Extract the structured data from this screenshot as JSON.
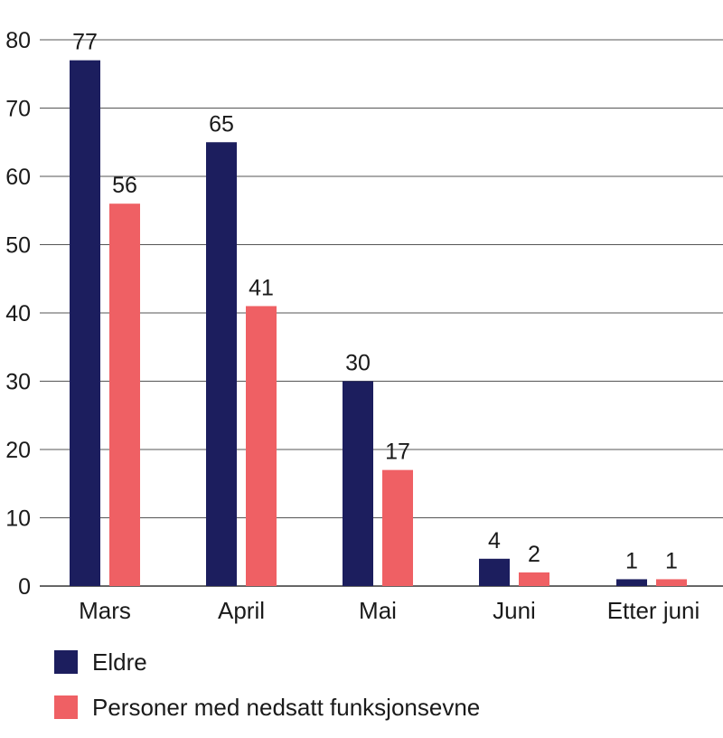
{
  "chart_data": {
    "type": "bar",
    "categories": [
      "Mars",
      "April",
      "Mai",
      "Juni",
      "Etter juni"
    ],
    "series": [
      {
        "name": "Eldre",
        "values": [
          77,
          65,
          30,
          4,
          1
        ],
        "color": "#1c1e5e"
      },
      {
        "name": "Personer med nedsatt funksjonsevne",
        "values": [
          56,
          41,
          17,
          2,
          1
        ],
        "color": "#ef6064"
      }
    ],
    "yticks": [
      "0",
      "10",
      "20",
      "30",
      "40",
      "50",
      "60",
      "70",
      "80"
    ],
    "ylim": [
      0,
      80
    ],
    "grid": true,
    "legend_position": "bottom-left",
    "title": "",
    "xlabel": "",
    "ylabel": ""
  }
}
